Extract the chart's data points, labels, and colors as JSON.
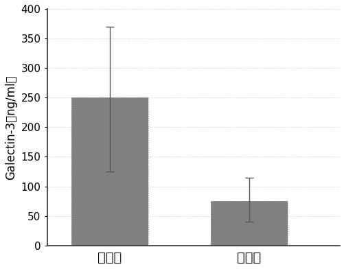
{
  "categories": [
    "治疗前",
    "治疗后"
  ],
  "values": [
    250,
    75
  ],
  "errors_upper": [
    120,
    40
  ],
  "errors_lower": [
    125,
    35
  ],
  "bar_color": "#808080",
  "bar_edge_color": "#999999",
  "bar_width": 0.55,
  "bar_positions": [
    1,
    2
  ],
  "ylabel": "Galectin-3（ng/ml）",
  "ylim": [
    0,
    400
  ],
  "yticks": [
    0,
    50,
    100,
    150,
    200,
    250,
    300,
    350,
    400
  ],
  "ylabel_fontsize": 12,
  "tick_fontsize": 11,
  "xtick_fontsize": 14,
  "background_color": "#ffffff",
  "error_capsize": 4,
  "error_color": "#555555",
  "error_linewidth": 1.0,
  "xlim": [
    0.55,
    2.65
  ]
}
